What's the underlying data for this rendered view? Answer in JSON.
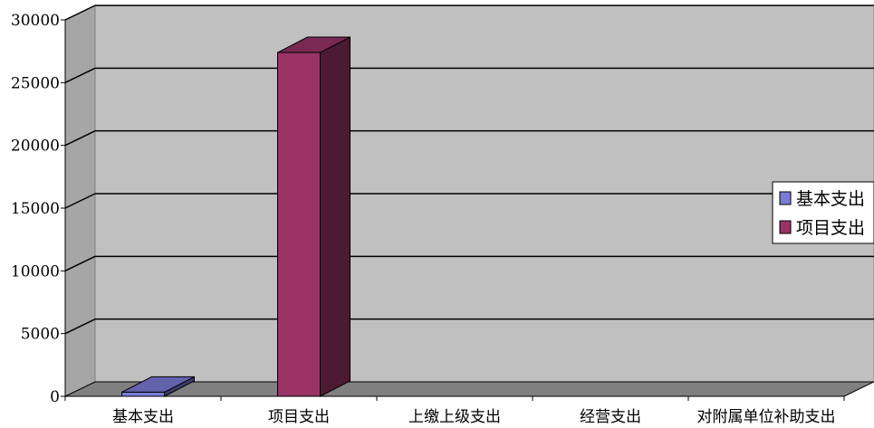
{
  "chart_data": {
    "type": "bar",
    "categories": [
      "基本支出",
      "项目支出",
      "上缴上级支出",
      "经营支出",
      "对附属单位补助支出"
    ],
    "series": [
      {
        "name": "基本支出",
        "values": [
          330,
          0,
          0,
          0,
          0
        ],
        "color": "#7b7bd8"
      },
      {
        "name": "项目支出",
        "values": [
          0,
          27400,
          0,
          0,
          0
        ],
        "color": "#993366"
      }
    ],
    "ylim": [
      0,
      30000
    ],
    "yticks": [
      0,
      5000,
      10000,
      15000,
      20000,
      25000,
      30000
    ],
    "grid": true,
    "three_d": true,
    "legend_position": "right",
    "wall_color": "#c0c0c0",
    "floor_color": "#808080"
  }
}
